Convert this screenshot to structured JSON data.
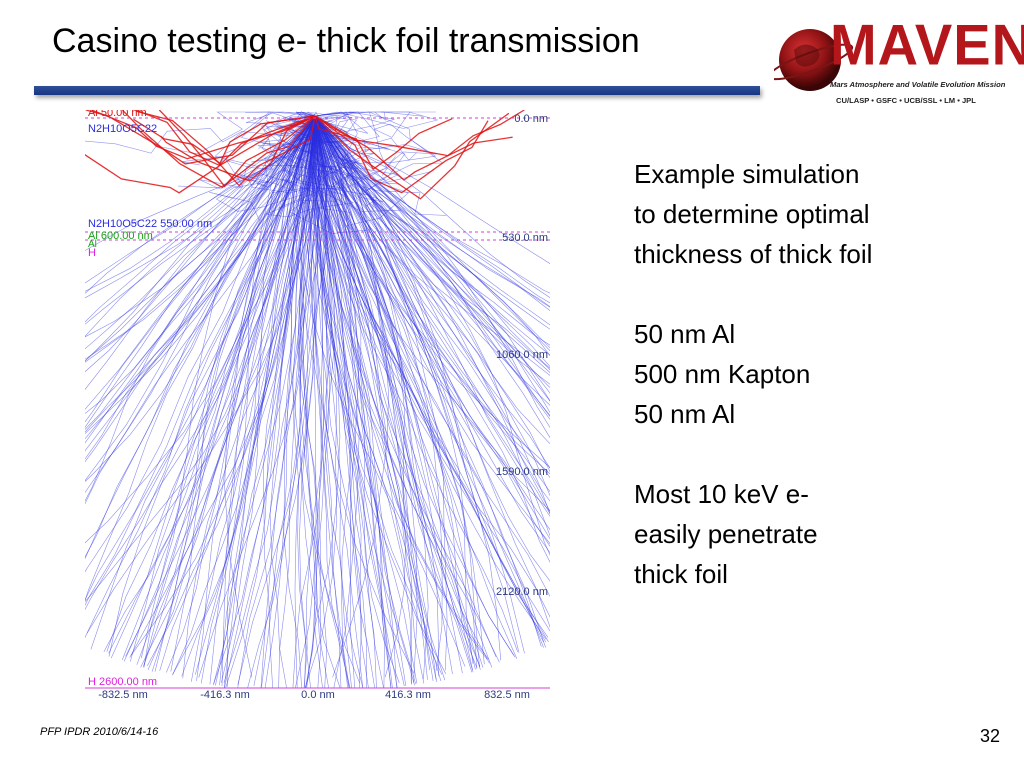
{
  "slide": {
    "title": "Casino testing e- thick foil transmission",
    "page_number": "32",
    "footer": "PFP IPDR 2010/6/14-16"
  },
  "logo": {
    "word": "MAVEN",
    "subtitle": "Mars Atmosphere and Volatile Evolution Mission",
    "partners": "CU/LASP • GSFC • UCB/SSL • LM • JPL",
    "colors": {
      "word": "#b3171c",
      "planet": "#8e1214"
    }
  },
  "simulation": {
    "layer_labels": {
      "al_top": "Al 50.00 nm",
      "kapton": "N2H10O5C22",
      "kapton_bottom": "N2H10O5C22 550.00 nm",
      "al_bottom": "Al 600.00 nm",
      "al_small": "Al",
      "h": "H",
      "h_bottom": "H 2600.00 nm"
    },
    "depth_labels": [
      "0.0 nm",
      "530.0 nm",
      "1060.0 nm",
      "1590.0 nm",
      "2120.0 nm"
    ],
    "x_labels": [
      "-832.5 nm",
      "-416.3 nm",
      "0.0 nm",
      "416.3 nm",
      "832.5 nm"
    ],
    "colors": {
      "transmitted": "#2a2de0",
      "backscattered": "#e01010",
      "interface": "#d040d0"
    }
  },
  "bullets": [
    "Example simulation",
    "to determine optimal",
    "thickness of thick foil",
    "",
    "50 nm Al",
    "500 nm Kapton",
    "50 nm Al",
    "",
    "Most 10 keV e-",
    "easily penetrate",
    "thick foil"
  ],
  "title_bar_color": "#173582"
}
